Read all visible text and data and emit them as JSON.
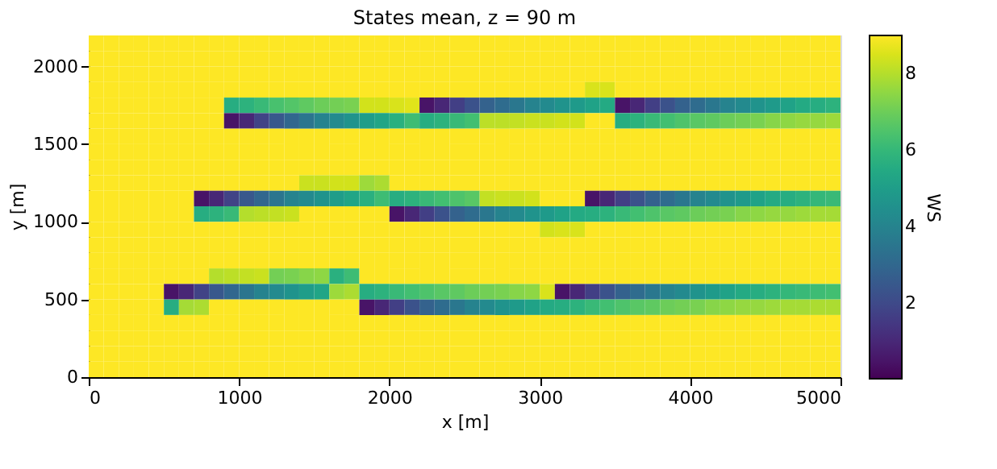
{
  "chart_data": {
    "type": "heatmap",
    "title": "States mean, z =  90 m",
    "xlabel": "x [m]",
    "ylabel": "y [m]",
    "clabel": "WS",
    "x": [
      50,
      150,
      250,
      350,
      450,
      550,
      650,
      750,
      850,
      950,
      1050,
      1150,
      1250,
      1350,
      1450,
      1550,
      1650,
      1750,
      1850,
      1950,
      2050,
      2150,
      2250,
      2350,
      2450,
      2550,
      2650,
      2750,
      2850,
      2950,
      3050,
      3150,
      3250,
      3350,
      3450,
      3550,
      3650,
      3750,
      3850,
      3950,
      4050,
      4150,
      4250,
      4350,
      4450,
      4550,
      4650,
      4750,
      4850,
      4950
    ],
    "y": [
      2150,
      2050,
      1950,
      1850,
      1750,
      1650,
      1550,
      1450,
      1350,
      1250,
      1150,
      1050,
      950,
      850,
      750,
      650,
      550,
      450,
      350,
      250,
      150,
      50
    ],
    "cells": [
      [
        9,
        9,
        9,
        9,
        9,
        9,
        9,
        9,
        9,
        9,
        9,
        9,
        9,
        9,
        9,
        9,
        9,
        9,
        9,
        9,
        9,
        9,
        9,
        9,
        9,
        9,
        9,
        9,
        9,
        9,
        9,
        9,
        9,
        9,
        9,
        9,
        9,
        9,
        9,
        9,
        9,
        9,
        9,
        9,
        9,
        9,
        9,
        9,
        9,
        9
      ],
      [
        9,
        9,
        9,
        9,
        9,
        9,
        9,
        9,
        9,
        9,
        9,
        9,
        9,
        9,
        9,
        9,
        9,
        9,
        9,
        9,
        9,
        9,
        9,
        9,
        9,
        9,
        9,
        9,
        9,
        9,
        9,
        9,
        9,
        9,
        9,
        9,
        9,
        9,
        9,
        9,
        9,
        9,
        9,
        9,
        9,
        9,
        9,
        9,
        9,
        9
      ],
      [
        9,
        9,
        9,
        9,
        9,
        9,
        9,
        9,
        9,
        9,
        9,
        9,
        9,
        9,
        9,
        9,
        9,
        9,
        9,
        9,
        9,
        9,
        9,
        9,
        9,
        9,
        9,
        9,
        9,
        9,
        9,
        9,
        9,
        9,
        9,
        9,
        9,
        9,
        9,
        9,
        9,
        9,
        9,
        9,
        9,
        9,
        9,
        9,
        9,
        9
      ],
      [
        9,
        9,
        9,
        9,
        9,
        9,
        9,
        9,
        9,
        9,
        9,
        9,
        9,
        9,
        9,
        9,
        9,
        9,
        9,
        9,
        9,
        9,
        9,
        9,
        9,
        9,
        9,
        9,
        9,
        9,
        9,
        9,
        9,
        8.5,
        8.5,
        9,
        9,
        9,
        9,
        9,
        9,
        9,
        9,
        9,
        9,
        9,
        9,
        9,
        9,
        9
      ],
      [
        9,
        9,
        9,
        9,
        9,
        9,
        9,
        9,
        9,
        5.6,
        5.8,
        6.1,
        6.4,
        6.6,
        6.8,
        7,
        7.1,
        7.2,
        8.4,
        8.4,
        8.5,
        8.6,
        0.5,
        1,
        1.7,
        2.3,
        2.8,
        3.2,
        3.6,
        4,
        4.3,
        4.6,
        4.9,
        5.2,
        5.5,
        0.5,
        1,
        1.7,
        2.3,
        2.8,
        3.2,
        3.6,
        4,
        4.3,
        4.6,
        4.9,
        5.2,
        5.5,
        5.6,
        5.8
      ],
      [
        9,
        9,
        9,
        9,
        9,
        9,
        9,
        9,
        9,
        0.5,
        1,
        1.8,
        2.5,
        3,
        3.5,
        4,
        4.3,
        4.6,
        5,
        5.3,
        5.7,
        6.2,
        5.6,
        5.8,
        6.1,
        6.3,
        8.1,
        8.1,
        8.2,
        8.3,
        8.3,
        8.4,
        8.4,
        9,
        9,
        5.6,
        5.8,
        6.1,
        6.3,
        6.5,
        6.7,
        6.8,
        7,
        7.1,
        7.2,
        7.4,
        7.5,
        7.6,
        7.6,
        7.7
      ],
      [
        9,
        9,
        9,
        9,
        9,
        9,
        9,
        9,
        9,
        9,
        9,
        9,
        9,
        9,
        9,
        9,
        9,
        9,
        9,
        9,
        9,
        9,
        9,
        9,
        9,
        9,
        9,
        9,
        9,
        9,
        9,
        9,
        9,
        9,
        9,
        9,
        9,
        9,
        9,
        9,
        9,
        9,
        9,
        9,
        9,
        9,
        9,
        9,
        9,
        9
      ],
      [
        9,
        9,
        9,
        9,
        9,
        9,
        9,
        9,
        9,
        9,
        9,
        9,
        9,
        9,
        9,
        9,
        9,
        9,
        9,
        9,
        9,
        9,
        9,
        9,
        9,
        9,
        9,
        9,
        9,
        9,
        9,
        9,
        9,
        9,
        9,
        9,
        9,
        9,
        9,
        9,
        9,
        9,
        9,
        9,
        9,
        9,
        9,
        9,
        9,
        9
      ],
      [
        9,
        9,
        9,
        9,
        9,
        9,
        9,
        9,
        9,
        9,
        9,
        9,
        9,
        9,
        9,
        9,
        9,
        9,
        9,
        9,
        9,
        9,
        9,
        9,
        9,
        9,
        9,
        9,
        9,
        9,
        9,
        9,
        9,
        9,
        9,
        9,
        9,
        9,
        9,
        9,
        9,
        9,
        9,
        9,
        9,
        9,
        9,
        9,
        9,
        9
      ],
      [
        9,
        9,
        9,
        9,
        9,
        9,
        9,
        9,
        9,
        9,
        9,
        9,
        9,
        9,
        8.3,
        8.3,
        8.4,
        8.4,
        7.7,
        7.9,
        9,
        9,
        9,
        9,
        9,
        9,
        9,
        9,
        9,
        9,
        9,
        9,
        9,
        9,
        9,
        9,
        9,
        9,
        9,
        9,
        9,
        9,
        9,
        9,
        9,
        9,
        9,
        9,
        9,
        9
      ],
      [
        9,
        9,
        9,
        9,
        9,
        9,
        9,
        0.5,
        1,
        1.8,
        2.5,
        3,
        3.5,
        4,
        4.3,
        4.6,
        5,
        5.3,
        5.7,
        6.2,
        5.6,
        5.8,
        6.1,
        6.3,
        6.5,
        6.7,
        8.2,
        8.3,
        8.3,
        8.4,
        9,
        9,
        9,
        0.5,
        1,
        1.7,
        2.3,
        2.8,
        3.2,
        3.6,
        4,
        4.3,
        4.6,
        4.9,
        5.2,
        5.5,
        5.6,
        5.8,
        6,
        6.1
      ],
      [
        9,
        9,
        9,
        9,
        9,
        9,
        9,
        5.6,
        5.8,
        6.1,
        8,
        8.1,
        8.2,
        8.3,
        9,
        9,
        9,
        9,
        9,
        9,
        0.5,
        1,
        1.7,
        2.3,
        2.8,
        3.2,
        3.6,
        4,
        4.3,
        4.6,
        4.9,
        5.2,
        5.5,
        5.6,
        5.8,
        6.1,
        6.3,
        6.5,
        6.7,
        6.8,
        7,
        7.1,
        7.2,
        7.4,
        7.5,
        7.6,
        7.6,
        7.7,
        7.8,
        7.8
      ],
      [
        9,
        9,
        9,
        9,
        9,
        9,
        9,
        9,
        9,
        9,
        9,
        9,
        9,
        9,
        9,
        9,
        9,
        9,
        9,
        9,
        9,
        9,
        9,
        9,
        9,
        9,
        9,
        9,
        9,
        9,
        8.4,
        8.5,
        8.5,
        9,
        9,
        9,
        9,
        9,
        9,
        9,
        9,
        9,
        9,
        9,
        9,
        9,
        9,
        9,
        9,
        9
      ],
      [
        9,
        9,
        9,
        9,
        9,
        9,
        9,
        9,
        9,
        9,
        9,
        9,
        9,
        9,
        9,
        9,
        9,
        9,
        9,
        9,
        9,
        9,
        9,
        9,
        9,
        9,
        9,
        9,
        9,
        9,
        9,
        9,
        9,
        9,
        9,
        9,
        9,
        9,
        9,
        9,
        9,
        9,
        9,
        9,
        9,
        9,
        9,
        9,
        9,
        9
      ],
      [
        9,
        9,
        9,
        9,
        9,
        9,
        9,
        9,
        9,
        9,
        9,
        9,
        9,
        9,
        9,
        9,
        9,
        9,
        9,
        9,
        9,
        9,
        9,
        9,
        9,
        9,
        9,
        9,
        9,
        9,
        9,
        9,
        9,
        9,
        9,
        9,
        9,
        9,
        9,
        9,
        9,
        9,
        9,
        9,
        9,
        9,
        9,
        9,
        9,
        9
      ],
      [
        9,
        9,
        9,
        9,
        9,
        9,
        9,
        9,
        8,
        8.1,
        8.2,
        8.3,
        7.1,
        7.2,
        7.4,
        7.5,
        5.7,
        6.2,
        9,
        9,
        9,
        9,
        9,
        9,
        9,
        9,
        9,
        9,
        9,
        9,
        9,
        9,
        9,
        9,
        9,
        9,
        9,
        9,
        9,
        9,
        9,
        9,
        9,
        9,
        9,
        9,
        9,
        9,
        9,
        9
      ],
      [
        9,
        9,
        9,
        9,
        9,
        0.5,
        1,
        1.8,
        2.5,
        3,
        3.5,
        4,
        4.3,
        4.6,
        5,
        5.3,
        7.7,
        7.9,
        5.6,
        5.8,
        6.1,
        6.3,
        6.5,
        6.7,
        6.8,
        7,
        7.1,
        7.2,
        7.4,
        7.5,
        8.5,
        0.5,
        1,
        1.7,
        2.3,
        2.8,
        3.2,
        3.6,
        4,
        4.3,
        4.6,
        4.9,
        5.2,
        5.5,
        5.6,
        5.8,
        6,
        6.1,
        6.2,
        6.3
      ],
      [
        9,
        9,
        9,
        9,
        9,
        5.6,
        7.8,
        7.9,
        9,
        9,
        9,
        9,
        9,
        9,
        9,
        9,
        9,
        9,
        0.5,
        1,
        1.7,
        2.3,
        2.8,
        3.2,
        3.6,
        4,
        4.3,
        4.6,
        4.9,
        5.2,
        5.5,
        5.6,
        5.8,
        6.1,
        6.3,
        6.5,
        6.7,
        6.8,
        7,
        7.1,
        7.2,
        7.4,
        7.5,
        7.6,
        7.6,
        7.7,
        7.8,
        7.8,
        7.9,
        7.9
      ],
      [
        9,
        9,
        9,
        9,
        9,
        9,
        9,
        9,
        9,
        9,
        9,
        9,
        9,
        9,
        9,
        9,
        9,
        9,
        9,
        9,
        9,
        9,
        9,
        9,
        9,
        9,
        9,
        9,
        9,
        9,
        9,
        9,
        9,
        9,
        9,
        9,
        9,
        9,
        9,
        9,
        9,
        9,
        9,
        9,
        9,
        9,
        9,
        9,
        9,
        9
      ],
      [
        9,
        9,
        9,
        9,
        9,
        9,
        9,
        9,
        9,
        9,
        9,
        9,
        9,
        9,
        9,
        9,
        9,
        9,
        9,
        9,
        9,
        9,
        9,
        9,
        9,
        9,
        9,
        9,
        9,
        9,
        9,
        9,
        9,
        9,
        9,
        9,
        9,
        9,
        9,
        9,
        9,
        9,
        9,
        9,
        9,
        9,
        9,
        9,
        9,
        9
      ],
      [
        9,
        9,
        9,
        9,
        9,
        9,
        9,
        9,
        9,
        9,
        9,
        9,
        9,
        9,
        9,
        9,
        9,
        9,
        9,
        9,
        9,
        9,
        9,
        9,
        9,
        9,
        9,
        9,
        9,
        9,
        9,
        9,
        9,
        9,
        9,
        9,
        9,
        9,
        9,
        9,
        9,
        9,
        9,
        9,
        9,
        9,
        9,
        9,
        9,
        9
      ],
      [
        9,
        9,
        9,
        9,
        9,
        9,
        9,
        9,
        9,
        9,
        9,
        9,
        9,
        9,
        9,
        9,
        9,
        9,
        9,
        9,
        9,
        9,
        9,
        9,
        9,
        9,
        9,
        9,
        9,
        9,
        9,
        9,
        9,
        9,
        9,
        9,
        9,
        9,
        9,
        9,
        9,
        9,
        9,
        9,
        9,
        9,
        9,
        9,
        9,
        9
      ]
    ],
    "xlim": [
      0,
      5000
    ],
    "xticks": [
      0,
      1000,
      2000,
      3000,
      4000,
      5000
    ],
    "ylim": [
      0,
      2200
    ],
    "yticks": [
      0,
      500,
      1000,
      1500,
      2000
    ],
    "clim": [
      0.05,
      9
    ],
    "cticks": [
      2,
      4,
      6,
      8
    ],
    "grid": false
  }
}
